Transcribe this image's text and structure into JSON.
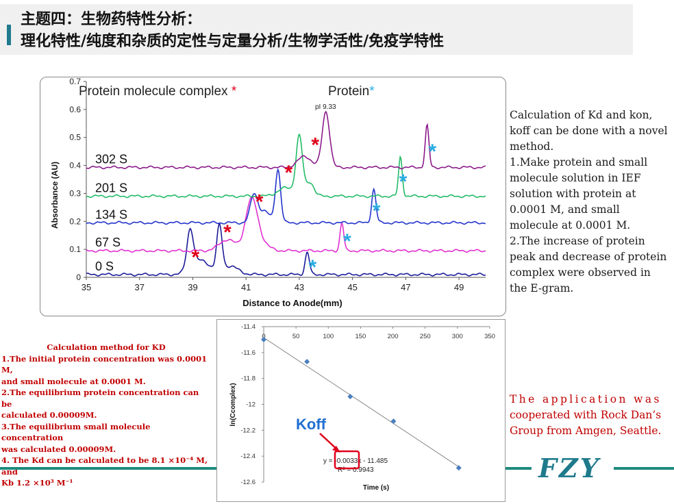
{
  "header": {
    "title_line1": "主题四：生物药特性分析：",
    "title_line2": "理化特性/纯度和杂质的定性与定量分析/生物学活性/免疫学特性"
  },
  "colors": {
    "teal": "#1f8a7e",
    "red": "#c00000",
    "cyan_star": "#29abe2",
    "red_star": "#e0001b"
  },
  "chart_data": [
    {
      "type": "line",
      "title": "",
      "legend_left": "Protein molecule complex",
      "legend_left_marker": "*",
      "legend_right": "Protein",
      "legend_right_marker": "*",
      "peak_annotation": "pI 9.33",
      "xlabel": "Distance to Anode(mm)",
      "ylabel": "Absorbance (AU)",
      "xlim": [
        35,
        50
      ],
      "ylim": [
        0,
        0.7
      ],
      "x_ticks": [
        "35",
        "37",
        "39",
        "41",
        "43",
        "45",
        "47",
        "49"
      ],
      "y_ticks": [
        "0",
        "0.1",
        "0.2",
        "0.3",
        "0.4",
        "0.5",
        "0.6",
        "0.7"
      ],
      "series": [
        {
          "name": "0 S",
          "color": "#1a1a99",
          "baseline": 0.01,
          "peaks": [
            {
              "x": 38.9,
              "h": 0.14,
              "w": 0.12
            },
            {
              "x": 39.3,
              "h": 0.05,
              "w": 0.35
            },
            {
              "x": 40.0,
              "h": 0.16,
              "w": 0.1
            },
            {
              "x": 40.4,
              "h": 0.03,
              "w": 0.3
            },
            {
              "x": 43.3,
              "h": 0.08,
              "w": 0.08
            }
          ],
          "complex_star_x": 39.1,
          "protein_star_x": 43.5
        },
        {
          "name": "67 S",
          "color": "#e030d0",
          "baseline": 0.095,
          "peaks": [
            {
              "x": 40.3,
              "h": 0.04,
              "w": 0.3
            },
            {
              "x": 41.2,
              "h": 0.17,
              "w": 0.22
            },
            {
              "x": 41.5,
              "h": 0.03,
              "w": 0.3
            },
            {
              "x": 44.6,
              "h": 0.1,
              "w": 0.07
            }
          ],
          "complex_star_x": 40.3,
          "protein_star_x": 44.8
        },
        {
          "name": "134 S",
          "color": "#2233cc",
          "baseline": 0.195,
          "peaks": [
            {
              "x": 41.3,
              "h": 0.1,
              "w": 0.14
            },
            {
              "x": 41.7,
              "h": 0.04,
              "w": 0.2
            },
            {
              "x": 42.2,
              "h": 0.19,
              "w": 0.1
            },
            {
              "x": 45.8,
              "h": 0.12,
              "w": 0.08
            }
          ],
          "complex_star_x": 41.5,
          "protein_star_x": 45.9
        },
        {
          "name": "201 S",
          "color": "#22bb66",
          "baseline": 0.29,
          "peaks": [
            {
              "x": 42.5,
              "h": 0.03,
              "w": 0.3
            },
            {
              "x": 43.0,
              "h": 0.21,
              "w": 0.12
            },
            {
              "x": 43.4,
              "h": 0.05,
              "w": 0.15
            },
            {
              "x": 46.8,
              "h": 0.14,
              "w": 0.07
            }
          ],
          "complex_star_x": 42.6,
          "protein_star_x": 46.9
        },
        {
          "name": "302 S",
          "color": "#8b1a8b",
          "baseline": 0.393,
          "peaks": [
            {
              "x": 43.2,
              "h": 0.04,
              "w": 0.25
            },
            {
              "x": 44.0,
              "h": 0.2,
              "w": 0.14
            },
            {
              "x": 47.8,
              "h": 0.15,
              "w": 0.07
            }
          ],
          "complex_star_x": 43.6,
          "protein_star_x": 48.0
        }
      ]
    },
    {
      "type": "scatter",
      "xlabel": "Time (s)",
      "ylabel": "ln(Ccomplex)",
      "xlim": [
        0,
        350
      ],
      "ylim": [
        -12.6,
        -11.4
      ],
      "x_ticks": [
        "0",
        "50",
        "100",
        "150",
        "200",
        "250",
        "300",
        "350"
      ],
      "y_ticks": [
        "-11.4",
        "-11.6",
        "-11.8",
        "-12",
        "-12.2",
        "-12.4",
        "-12.6"
      ],
      "x": [
        0,
        67,
        134,
        201,
        302
      ],
      "y": [
        -11.5,
        -11.67,
        -11.94,
        -12.13,
        -12.49
      ],
      "fit": {
        "slope": -0.0033,
        "intercept": -11.485
      },
      "equation": "y = -0.0033x - 11.485",
      "r2": "R² = 0.9943",
      "annotation": "Koff"
    }
  ],
  "description": {
    "lines": [
      "Calculation of Kd and kon,",
      "koff can be done with a novel",
      "method.",
      "1.Make protein and small",
      "molecule solution in IEF",
      "solution with protein at",
      "0.0001 M, and small",
      "molecule at 0.0001 M.",
      "2.The increase of protein",
      "peak and decrease of protein",
      "complex  were observed in",
      "the E-gram."
    ]
  },
  "method": {
    "heading": "Calculation method for KD",
    "lines": [
      "1.The initial protein concentration was 0.0001 M,",
      "and small molecule at 0.0001 M.",
      "2.The equilibrium protein concentration can be",
      "calculated 0.00009M.",
      "3.The equilibrium small molecule concentration",
      "was calculated 0.00009M.",
      "4. The Kd can be calculated to be 8.1 ×10⁻⁴ M, and",
      "Kb 1.2 ×10³ M⁻¹"
    ]
  },
  "application": {
    "line1": "The application was",
    "line2": "cooperated with Rock Dan’s",
    "line3": "Group from Amgen, Seattle."
  },
  "logo": {
    "text": "FZY"
  }
}
